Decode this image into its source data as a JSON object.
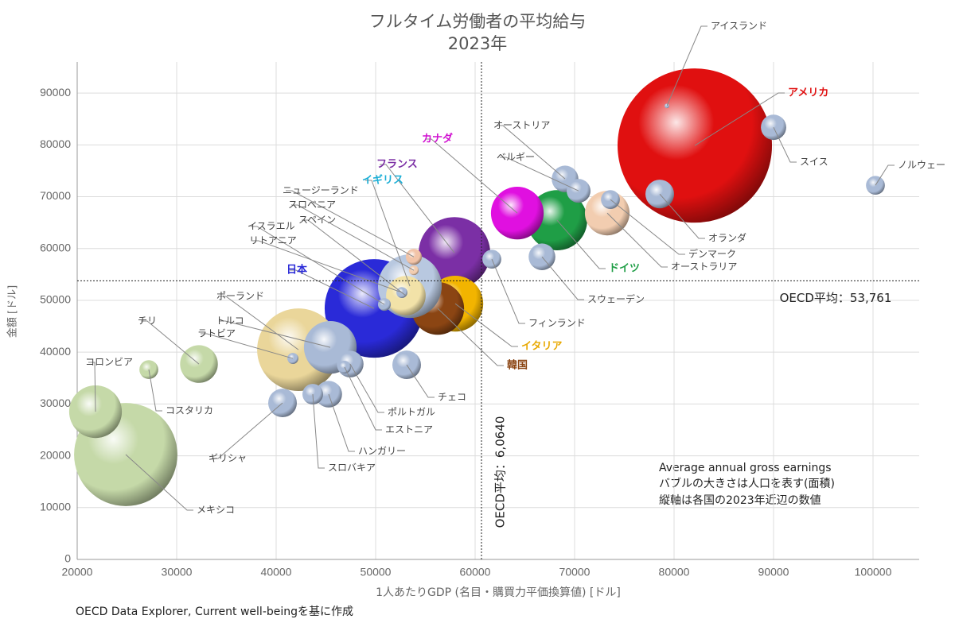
{
  "chart_data": {
    "type": "bubble",
    "title": [
      "フルタイム労働者の平均給与",
      "2023年"
    ],
    "x_label": "1人あたりGDP (名目・購買力平価換算値) [ドル]",
    "y_label": "金額 [ドル]",
    "annotation": [
      "Average annual gross earnings",
      "バブルの大きさは人口を表す(面積)",
      "縦軸は各国の2023年近辺の数値"
    ],
    "source": "OECD Data Explorer, Current well-beingを基に作成",
    "categories": [
      "アメリカ",
      "メキシコ",
      "日本",
      "ポーランド",
      "フランス",
      "ドイツ",
      "イタリア",
      "コロンビア",
      "トルコ",
      "韓国",
      "イギリス",
      "カナダ",
      "オーストラリア",
      "スペイン",
      "チリ",
      "オランダ",
      "ギリシャ",
      "チェコ",
      "オーストリア",
      "スウェーデン",
      "ハンガリー",
      "ポルトガル",
      "スイス",
      "ベルギー",
      "スロバキア",
      "ノルウェー",
      "デンマーク",
      "フィンランド",
      "コスタリカ",
      "ニュージーランド",
      "イスラエル",
      "エストニア",
      "リトアニア",
      "ラトビア",
      "スロベニア",
      "アイスランド"
    ],
    "x": [
      82080,
      24880,
      49840,
      42240,
      57920,
      68240,
      58000,
      21840,
      45440,
      56240,
      53440,
      64240,
      73280,
      53040,
      32240,
      78560,
      40640,
      53120,
      69040,
      66720,
      45280,
      47440,
      90000,
      70400,
      43680,
      100240,
      73600,
      61680,
      27200,
      53840,
      50880,
      46880,
      52640,
      41680,
      53840,
      79280
    ],
    "values": [
      79870,
      20240,
      48440,
      40470,
      59170,
      65460,
      49360,
      28510,
      40930,
      48440,
      52740,
      66840,
      66840,
      50900,
      37710,
      70520,
      30200,
      37560,
      73430,
      58400,
      31890,
      37710,
      83400,
      71130,
      31890,
      72200,
      69450,
      57950,
      36640,
      58400,
      49210,
      37100,
      51510,
      38790,
      55800,
      87530
    ],
    "sizes": [
      335,
      150,
      137,
      96,
      72,
      51,
      44,
      39,
      39,
      39,
      57,
      39,
      28,
      22,
      20,
      11.5,
      11.5,
      11.5,
      10,
      10,
      10,
      10,
      9,
      8,
      6,
      5,
      5,
      5,
      5,
      3.6,
      2.3,
      2.3,
      1.7,
      1.7,
      1.3,
      0.3
    ],
    "colors": [
      "#e01010",
      "#c5d9a8",
      "#2a2ad8",
      "#ead69a",
      "#7b2fa5",
      "#1f9e46",
      "#f2b400",
      "#c5d9a8",
      "#a9bad6",
      "#8b4513",
      "#b8c8e0",
      "#e010e0",
      "#f2cdb0",
      "#f2e2a8",
      "#c5d9a8",
      "#a9bad6",
      "#a9bad6",
      "#a9bad6",
      "#a9bad6",
      "#a9bad6",
      "#a9bad6",
      "#a9bad6",
      "#a9bad6",
      "#a9bad6",
      "#a9bad6",
      "#a9bad6",
      "#a9bad6",
      "#a9bad6",
      "#c5d9a8",
      "#f2c4a8",
      "#a9bad6",
      "#a9bad6",
      "#a9bad6",
      "#a9bad6",
      "#f2cdb0",
      "#a9bad6"
    ],
    "label_colors": [
      "#e01010",
      "#444444",
      "#2a2ad8",
      "#444444",
      "#7b2fa5",
      "#1f9e46",
      "#e8a800",
      "#444444",
      "#444444",
      "#8b4513",
      "#1aaed6",
      "#d010d0",
      "#444444",
      "#444444",
      "#444444",
      "#444444",
      "#444444",
      "#444444",
      "#444444",
      "#444444",
      "#444444",
      "#444444",
      "#444444",
      "#444444",
      "#444444",
      "#444444",
      "#444444",
      "#444444",
      "#444444",
      "#444444",
      "#444444",
      "#444444",
      "#444444",
      "#444444",
      "#444444",
      "#444444"
    ],
    "xlim": [
      20000,
      104640
    ],
    "ylim": [
      0,
      96000
    ],
    "xticks": [
      20000,
      30000,
      40000,
      50000,
      60000,
      70000,
      80000,
      90000,
      100000
    ],
    "yticks": [
      0,
      10000,
      20000,
      30000,
      40000,
      50000,
      60000,
      70000,
      80000,
      90000
    ],
    "grid": true,
    "reference_lines": [
      {
        "axis": "x",
        "value": 60640,
        "label": "OECD平均：6,0640"
      },
      {
        "axis": "y",
        "value": 53761,
        "label": "OECD平均：53,761"
      }
    ]
  }
}
